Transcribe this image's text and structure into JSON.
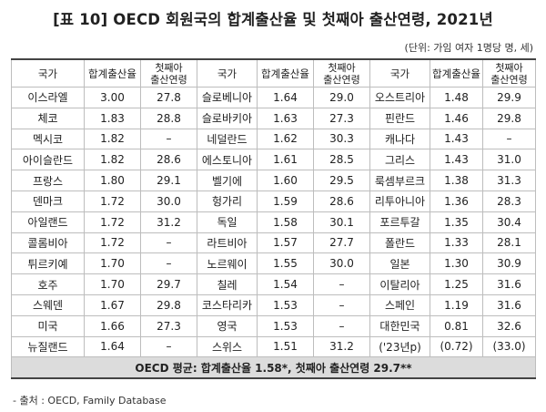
{
  "title": "[표 10] OECD 회원국의 합계출산율 및 첫째아 출산연령, 2021년",
  "unit": "(단위: 가임 여자 1명당 명, 세)",
  "headers": {
    "country": "국가",
    "tfr": "합계출산율",
    "age_line1": "첫째아",
    "age_line2": "출산연령"
  },
  "rows": [
    [
      [
        "이스라엘",
        "3.00",
        "27.8"
      ],
      [
        "슬로베니아",
        "1.64",
        "29.0"
      ],
      [
        "오스트리아",
        "1.48",
        "29.9"
      ]
    ],
    [
      [
        "체코",
        "1.83",
        "28.8"
      ],
      [
        "슬로바키아",
        "1.63",
        "27.3"
      ],
      [
        "핀란드",
        "1.46",
        "29.8"
      ]
    ],
    [
      [
        "멕시코",
        "1.82",
        "–"
      ],
      [
        "네덜란드",
        "1.62",
        "30.3"
      ],
      [
        "캐나다",
        "1.43",
        "–"
      ]
    ],
    [
      [
        "아이슬란드",
        "1.82",
        "28.6"
      ],
      [
        "에스토니아",
        "1.61",
        "28.5"
      ],
      [
        "그리스",
        "1.43",
        "31.0"
      ]
    ],
    [
      [
        "프랑스",
        "1.80",
        "29.1"
      ],
      [
        "벨기에",
        "1.60",
        "29.5"
      ],
      [
        "룩셈부르크",
        "1.38",
        "31.3"
      ]
    ],
    [
      [
        "덴마크",
        "1.72",
        "30.0"
      ],
      [
        "헝가리",
        "1.59",
        "28.6"
      ],
      [
        "리투아니아",
        "1.36",
        "28.3"
      ]
    ],
    [
      [
        "아일랜드",
        "1.72",
        "31.2"
      ],
      [
        "독일",
        "1.58",
        "30.1"
      ],
      [
        "포르투갈",
        "1.35",
        "30.4"
      ]
    ],
    [
      [
        "콜롬비아",
        "1.72",
        "–"
      ],
      [
        "라트비아",
        "1.57",
        "27.7"
      ],
      [
        "폴란드",
        "1.33",
        "28.1"
      ]
    ],
    [
      [
        "튀르키예",
        "1.70",
        "–"
      ],
      [
        "노르웨이",
        "1.55",
        "30.0"
      ],
      [
        "일본",
        "1.30",
        "30.9"
      ]
    ],
    [
      [
        "호주",
        "1.70",
        "29.7"
      ],
      [
        "칠레",
        "1.54",
        "–"
      ],
      [
        "이탈리아",
        "1.25",
        "31.6"
      ]
    ],
    [
      [
        "스웨덴",
        "1.67",
        "29.8"
      ],
      [
        "코스타리카",
        "1.53",
        "–"
      ],
      [
        "스페인",
        "1.19",
        "31.6"
      ]
    ],
    [
      [
        "미국",
        "1.66",
        "27.3"
      ],
      [
        "영국",
        "1.53",
        "–"
      ],
      [
        "대한민국",
        "0.81",
        "32.6"
      ]
    ],
    [
      [
        "뉴질랜드",
        "1.64",
        "–"
      ],
      [
        "스위스",
        "1.51",
        "31.2"
      ],
      [
        "('23년p)",
        "(0.72)",
        "(33.0)"
      ]
    ]
  ],
  "average": "OECD 평균: 합계출산율 1.58*, 첫째아 출산연령 29.7**",
  "source": "- 출처 : OECD, Family Database"
}
